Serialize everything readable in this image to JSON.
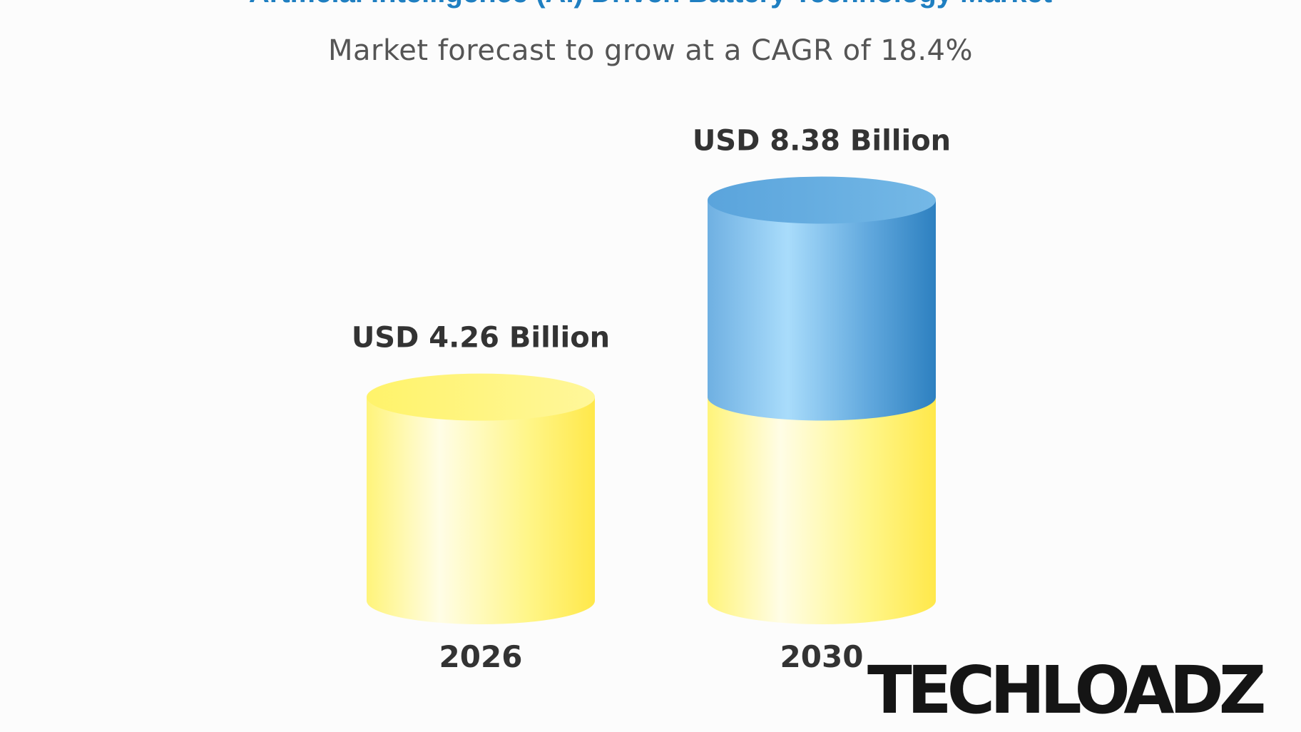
{
  "header": {
    "title": "Artificial Intelligence (AI) Driven Battery Technology Market",
    "subtitle": "Market forecast to grow at a CAGR of 18.4%"
  },
  "chart_data": {
    "type": "bar",
    "style": "3d-cylinder",
    "categories": [
      "2026",
      "2030"
    ],
    "values": [
      4.26,
      8.38
    ],
    "data_labels": [
      "USD 4.26 Billion",
      "USD 8.38 Billion"
    ],
    "unit": "USD Billion",
    "base_value": 4.26,
    "growth_value": 4.12,
    "colors": {
      "base": "#fff36a",
      "growth": "#5aa8df"
    },
    "grid": false,
    "legend": "none"
  },
  "watermark": {
    "text": "TECHLOADZ"
  }
}
